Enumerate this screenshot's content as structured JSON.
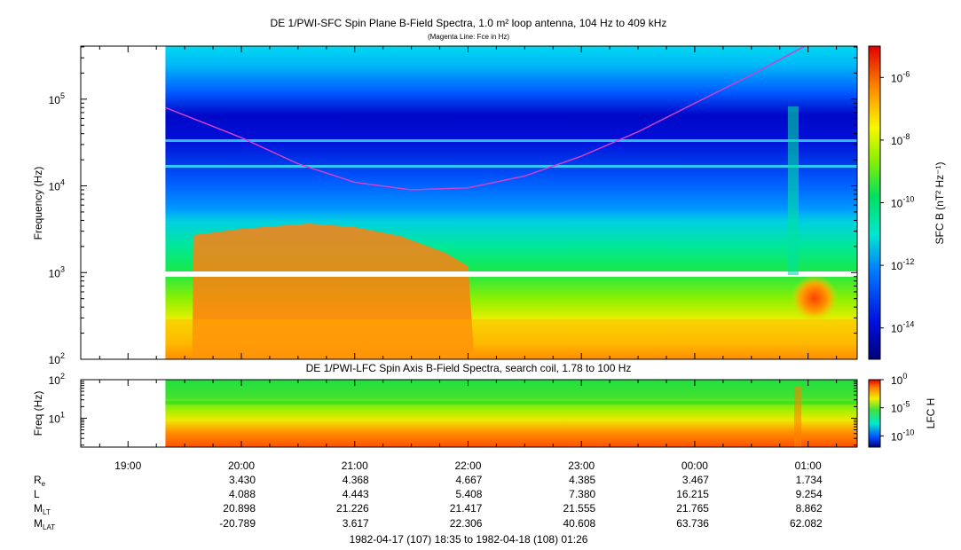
{
  "chart_data": [
    {
      "type": "heatmap",
      "title": "DE 1/PWI-SFC  Spin Plane B-Field Spectra, 1.0 m² loop antenna, 104 Hz to 409 kHz",
      "subtitle": "(Magenta Line: Fce in Hz)",
      "ylabel": "Frequency (Hz)",
      "yscale": "log",
      "ylim": [
        100,
        409000
      ],
      "y_ticks": [
        {
          "value": 100,
          "base": "10",
          "exp": "2"
        },
        {
          "value": 1000,
          "base": "10",
          "exp": "3"
        },
        {
          "value": 10000,
          "base": "10",
          "exp": "4"
        },
        {
          "value": 100000,
          "base": "10",
          "exp": "5"
        }
      ],
      "x_data_start_hours": 19.33,
      "colorbar": {
        "label": "SFC B (nT² Hz⁻¹)",
        "scale": "log",
        "range": [
          1e-15,
          1e-05
        ],
        "ticks": [
          {
            "value": -6,
            "base": "10",
            "exp": "-6"
          },
          {
            "value": -8,
            "base": "10",
            "exp": "-8"
          },
          {
            "value": -10,
            "base": "10",
            "exp": "-10"
          },
          {
            "value": -12,
            "base": "10",
            "exp": "-12"
          },
          {
            "value": -14,
            "base": "10",
            "exp": "-14"
          }
        ]
      },
      "fce_line": {
        "color": "#d040d0",
        "hours": [
          19.33,
          20.0,
          20.5,
          21.0,
          21.5,
          22.0,
          22.5,
          23.0,
          23.5,
          24.0,
          24.5,
          25.0
        ],
        "freq_hz": [
          80000,
          36000,
          18000,
          11000,
          9000,
          9500,
          13000,
          22000,
          42000,
          90000,
          190000,
          430000
        ]
      }
    },
    {
      "type": "heatmap",
      "title": "DE 1/PWI-LFC  Spin Axis B-Field Spectra, search coil, 1.78 to 100 Hz",
      "ylabel": "Freq (Hz)",
      "yscale": "log",
      "ylim": [
        1.78,
        100
      ],
      "y_ticks": [
        {
          "value": 100,
          "base": "10",
          "exp": "2"
        },
        {
          "value": 10,
          "base": "10",
          "exp": "1"
        }
      ],
      "colorbar": {
        "label": "LFC H",
        "scale": "log",
        "range": [
          1e-12,
          1
        ],
        "ticks": [
          {
            "value": 0,
            "base": "10",
            "exp": "0"
          },
          {
            "value": -5,
            "base": "10",
            "exp": "-5"
          },
          {
            "value": -10,
            "base": "10",
            "exp": "-10"
          }
        ]
      }
    }
  ],
  "x_axis": {
    "range_hours": [
      18.583,
      25.433
    ],
    "ticks": [
      {
        "hour": 19,
        "label": "19:00"
      },
      {
        "hour": 20,
        "label": "20:00"
      },
      {
        "hour": 21,
        "label": "21:00"
      },
      {
        "hour": 22,
        "label": "22:00"
      },
      {
        "hour": 23,
        "label": "23:00"
      },
      {
        "hour": 24,
        "label": "00:00"
      },
      {
        "hour": 25,
        "label": "01:00"
      }
    ]
  },
  "ephemeris": {
    "hours": [
      20,
      21,
      22,
      23,
      24,
      25
    ],
    "rows": [
      {
        "label": "R",
        "sub": "e",
        "values": [
          "3.430",
          "4.368",
          "4.667",
          "4.385",
          "3.467",
          "1.734"
        ]
      },
      {
        "label": "L",
        "sub": "",
        "values": [
          "4.088",
          "4.443",
          "5.408",
          "7.380",
          "16.215",
          "9.254"
        ]
      },
      {
        "label": "M",
        "sub": "LT",
        "values": [
          "20.898",
          "21.226",
          "21.417",
          "21.555",
          "21.765",
          "8.862"
        ]
      },
      {
        "label": "M",
        "sub": "LAT",
        "values": [
          "-20.789",
          "3.617",
          "22.306",
          "40.608",
          "63.736",
          "62.082"
        ]
      }
    ]
  },
  "time_range": "1982-04-17 (107) 18:35 to 1982-04-18 (108) 01:26"
}
